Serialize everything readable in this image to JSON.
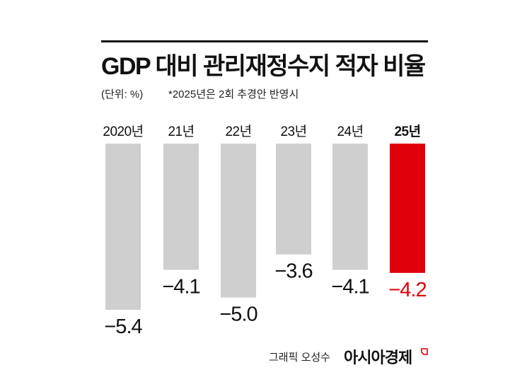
{
  "title": "GDP 대비 관리재정수지 적자 비율",
  "unit_note": "(단위: %)",
  "footnote": "*2025년은 2회 추경안 반영시",
  "credit": "그래픽 오성수",
  "brand": "아시아경제",
  "colors": {
    "bar": "#cfcfcf",
    "highlight": "#e0000b",
    "text": "#111111"
  },
  "chart_data": {
    "type": "bar",
    "categories": [
      "2020년",
      "21년",
      "22년",
      "23년",
      "24년",
      "25년"
    ],
    "values": [
      -5.4,
      -4.1,
      -5.0,
      -3.6,
      -4.1,
      -4.2
    ],
    "value_labels": [
      "−5.4",
      "−4.1",
      "−5.0",
      "−3.6",
      "−4.1",
      "−4.2"
    ],
    "highlight_index": 5,
    "ylim": [
      -5.4,
      0
    ],
    "grid": false,
    "legend": "none"
  }
}
